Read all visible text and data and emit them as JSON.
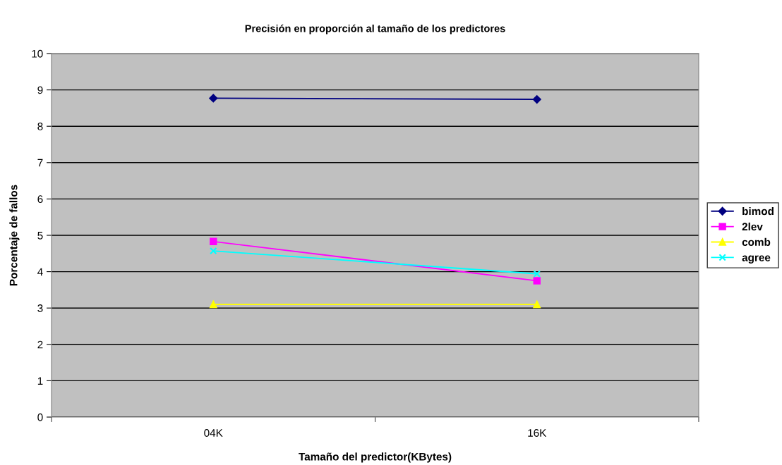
{
  "chart_data": {
    "type": "line",
    "title": "Precisión en proporción al tamaño de los predictores",
    "xlabel": "Tamaño del predictor(KBytes)",
    "ylabel": "Porcentaje de fallos",
    "categories": [
      "04K",
      "16K"
    ],
    "series": [
      {
        "name": "bimod",
        "color": "#000080",
        "marker": "diamond",
        "values": [
          8.77,
          8.74
        ]
      },
      {
        "name": "2lev",
        "color": "#ff00ff",
        "marker": "square",
        "values": [
          4.83,
          3.75
        ]
      },
      {
        "name": "comb",
        "color": "#ffff00",
        "marker": "triangle",
        "values": [
          3.1,
          3.1
        ]
      },
      {
        "name": "agree",
        "color": "#00ffff",
        "marker": "cross",
        "values": [
          4.57,
          3.94
        ]
      }
    ],
    "ylim": [
      0,
      10
    ],
    "yticks": [
      0,
      1,
      2,
      3,
      4,
      5,
      6,
      7,
      8,
      9,
      10
    ],
    "grid": "y",
    "legend": "right",
    "line_style": "solid"
  }
}
